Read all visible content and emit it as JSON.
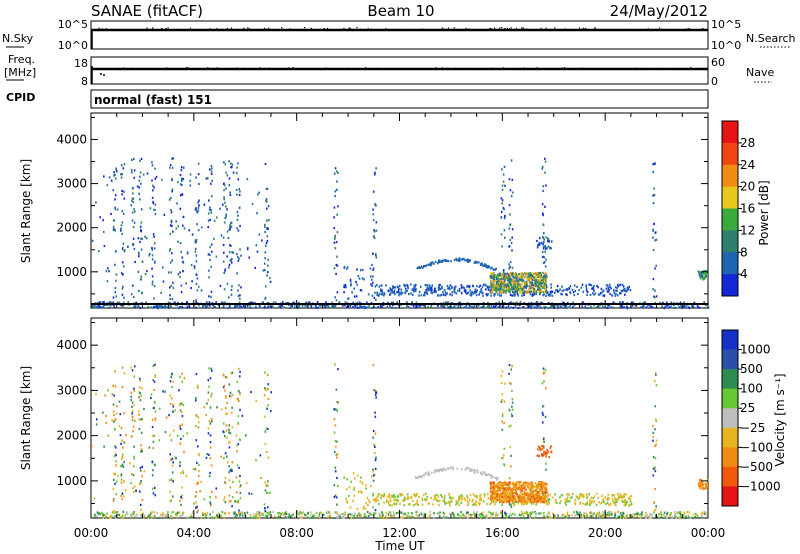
{
  "header": {
    "site": "SANAE (fitACF)",
    "beam": "Beam 10",
    "date": "24/May/2012"
  },
  "status_panels": {
    "nsky_label": "N.Sky",
    "nsky_ticks": [
      "10^5",
      "10^0"
    ],
    "nsearch_label": "N.Search",
    "nsearch_ticks": [
      "10^5",
      "10^0"
    ],
    "freq_label_line1": "Freq.",
    "freq_label_line2": "[MHz]",
    "freq_ticks": [
      "18",
      "8"
    ],
    "nave_label": "Nave",
    "nave_ticks": [
      "60",
      "0"
    ],
    "cpid_label": "CPID",
    "cpid_value": "normal (fast) 151"
  },
  "chart_data": [
    {
      "type": "heatmap",
      "name": "power",
      "ylabel": "Slant Range [km]",
      "xlabel": "Time UT",
      "x_ticks": [
        "00:00",
        "04:00",
        "08:00",
        "12:00",
        "16:00",
        "20:00",
        "00:00"
      ],
      "xlim_hours": [
        0,
        24
      ],
      "y_ticks": [
        1000,
        2000,
        3000,
        4000
      ],
      "ylim_km": [
        180,
        4600
      ],
      "colorbar": {
        "label": "Power [dB]",
        "ticks": [
          "4",
          "8",
          "12",
          "16",
          "20",
          "24",
          "28"
        ],
        "colors": [
          "#1428d8",
          "#1e64b4",
          "#2f7f6e",
          "#3aaa3c",
          "#e6c81e",
          "#f08c14",
          "#f04614",
          "#e61414"
        ],
        "range": [
          0,
          32
        ]
      }
    },
    {
      "type": "heatmap",
      "name": "velocity",
      "ylabel": "Slant Range [km]",
      "xlabel": "Time UT",
      "x_ticks": [
        "00:00",
        "04:00",
        "08:00",
        "12:00",
        "16:00",
        "20:00",
        "00:00"
      ],
      "xlim_hours": [
        0,
        24
      ],
      "y_ticks": [
        1000,
        2000,
        3000,
        4000
      ],
      "ylim_km": [
        180,
        4600
      ],
      "colorbar": {
        "label": "Velocity [m s⁻¹]",
        "ticks": [
          "1000",
          "500",
          "100",
          "25",
          "−25",
          "−100",
          "−500",
          "−1000"
        ],
        "colors": [
          "#1432c8",
          "#2850aa",
          "#2e8c50",
          "#64c832",
          "#bebebe",
          "#e6b41e",
          "#f08c14",
          "#f05a0a",
          "#e61414"
        ]
      }
    }
  ]
}
